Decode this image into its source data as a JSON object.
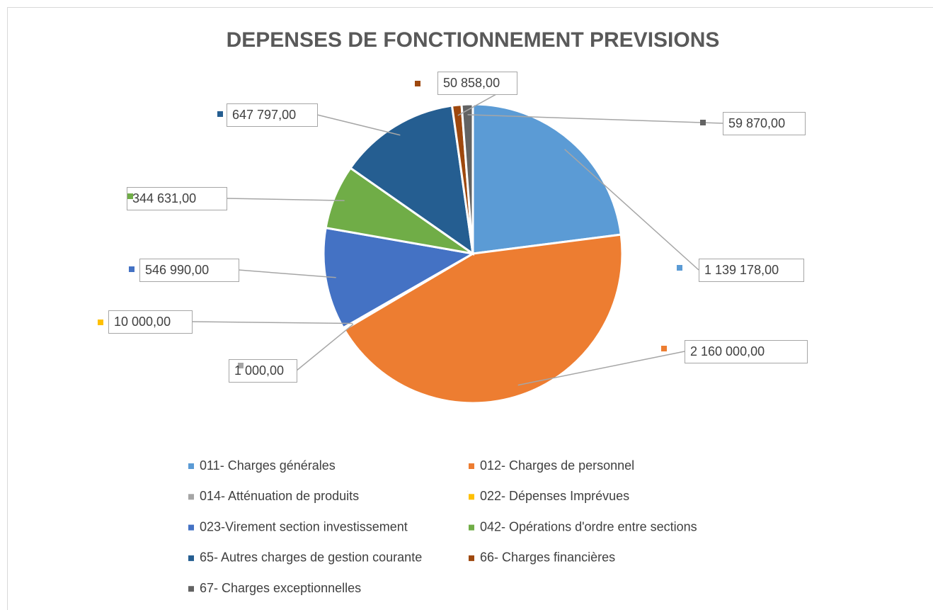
{
  "chart_data": {
    "type": "pie",
    "title": "DEPENSES DE FONCTIONNEMENT PREVISIONS",
    "categories": [
      "011- Charges générales",
      "012- Charges de personnel",
      "014- Atténuation de produits",
      "022- Dépenses Imprévues",
      "023-Virement section investissement",
      "042- Opérations d'ordre entre sections",
      "65- Autres charges de gestion courante",
      "66- Charges financières",
      "67- Charges exceptionnelles"
    ],
    "values": [
      1139178,
      2160000,
      1000,
      10000,
      546990,
      344631,
      647797,
      50858,
      59870
    ],
    "value_labels": [
      "1 139 178,00",
      "2 160 000,00",
      "1 000,00",
      "10 000,00",
      "546 990,00",
      "344 631,00",
      "647 797,00",
      "50 858,00",
      "59 870,00"
    ],
    "colors": [
      "#5b9bd5",
      "#ed7d31",
      "#a5a5a5",
      "#ffc000",
      "#4472c4",
      "#70ad47",
      "#255e91",
      "#9e480e",
      "#636363"
    ],
    "legend": "bottom"
  }
}
